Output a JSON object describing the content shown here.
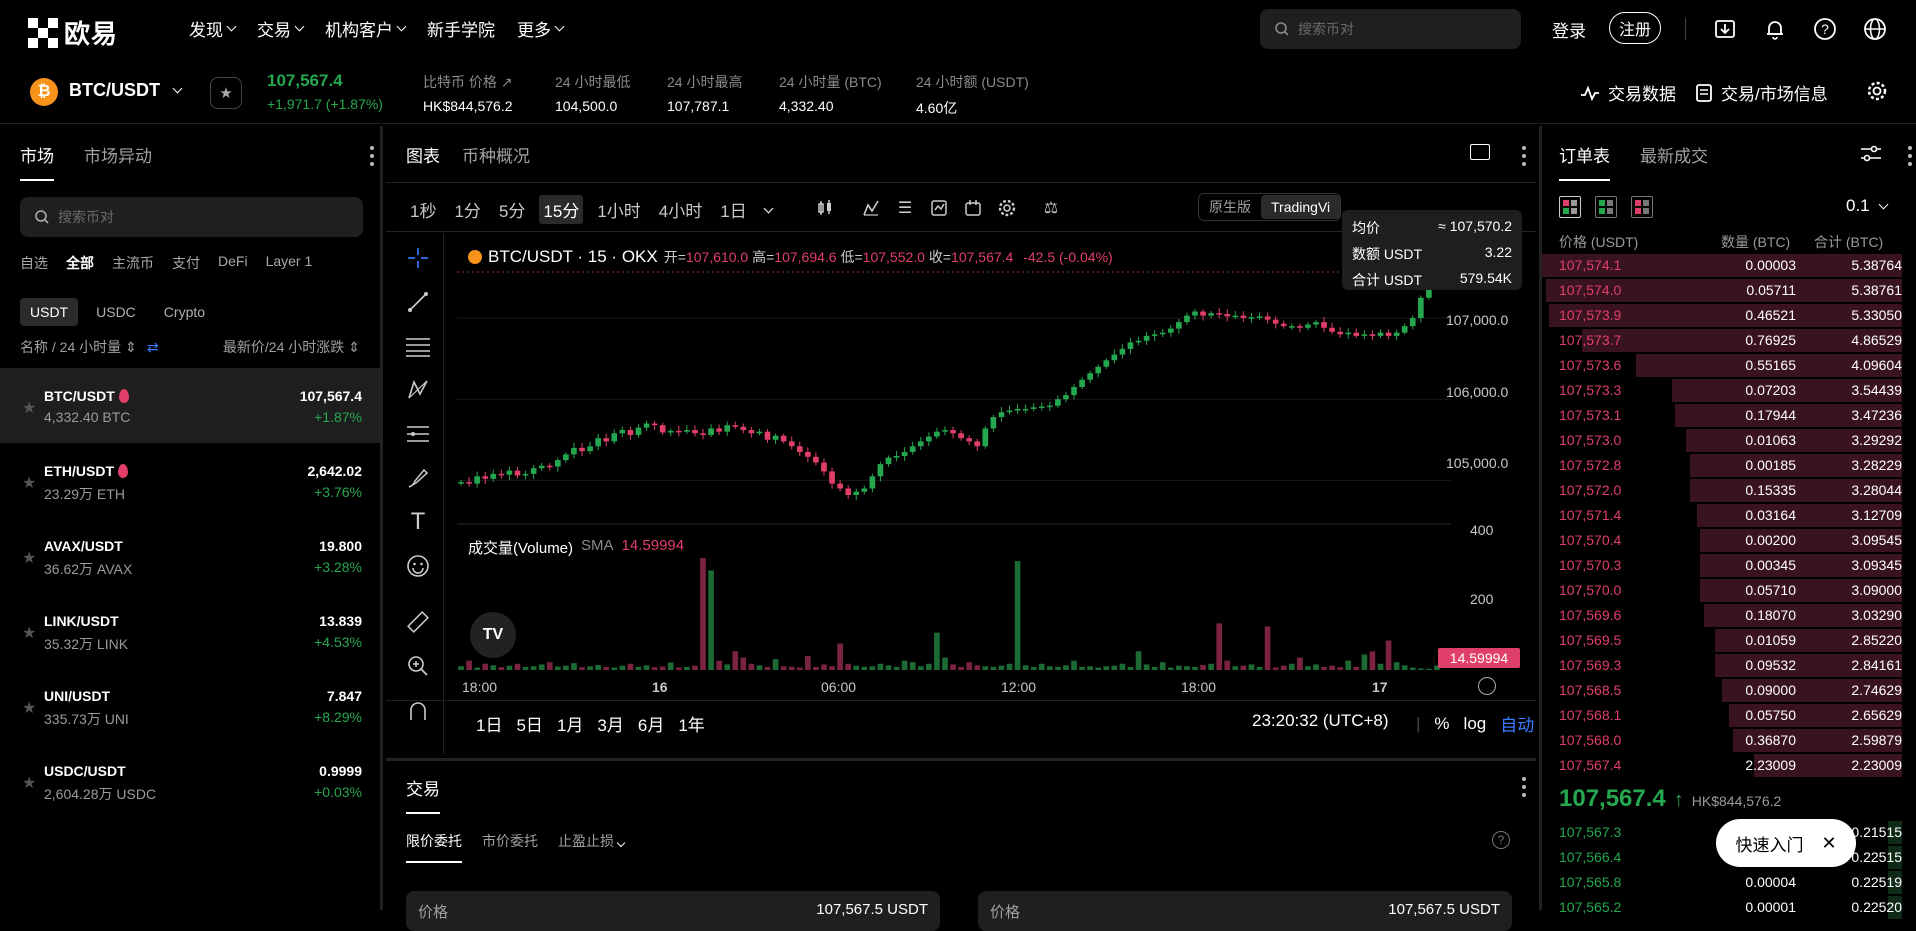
{
  "nav": {
    "logo_text": "欧易",
    "menu": [
      "发现",
      "交易",
      "机构客户",
      "新手学院",
      "更多"
    ],
    "search_placeholder": "搜索币对",
    "login": "登录",
    "register": "注册"
  },
  "ticker": {
    "pair": "BTC/USDT",
    "coin_symbol": "₿",
    "last_price": "107,567.4",
    "change": "+1,971.7 (+1.87%)",
    "stats": [
      {
        "label": "比特币 价格",
        "value": "HK$844,576.2"
      },
      {
        "label": "24 小时最低",
        "value": "104,500.0"
      },
      {
        "label": "24 小时最高",
        "value": "107,787.1"
      },
      {
        "label": "24 小时量 (BTC)",
        "value": "4,332.40"
      },
      {
        "label": "24 小时额 (USDT)",
        "value": "4.60亿"
      }
    ],
    "trade_data": "交易数据",
    "market_info": "交易/市场信息"
  },
  "market": {
    "tabs": [
      "市场",
      "市场异动"
    ],
    "search_placeholder": "搜索币对",
    "categories": [
      "自选",
      "全部",
      "主流币",
      "支付",
      "DeFi",
      "Layer 1"
    ],
    "quote_tabs": [
      "USDT",
      "USDC",
      "Crypto"
    ],
    "col_left": "名称 / 24 小时量",
    "col_right": "最新价/24 小时涨跌",
    "rows": [
      {
        "name": "BTC/USDT",
        "vol": "4,332.40 BTC",
        "price": "107,567.4",
        "pct": "+1.87%"
      },
      {
        "name": "ETH/USDT",
        "vol": "23.29万 ETH",
        "price": "2,642.02",
        "pct": "+3.76%"
      },
      {
        "name": "AVAX/USDT",
        "vol": "36.62万 AVAX",
        "price": "19.800",
        "pct": "+3.28%"
      },
      {
        "name": "LINK/USDT",
        "vol": "35.32万 LINK",
        "price": "13.839",
        "pct": "+4.53%"
      },
      {
        "name": "UNI/USDT",
        "vol": "335.73万 UNI",
        "price": "7.847",
        "pct": "+8.29%"
      },
      {
        "name": "USDC/USDT",
        "vol": "2,604.28万 USDC",
        "price": "0.9999",
        "pct": "+0.03%"
      }
    ]
  },
  "chart": {
    "tabs": [
      "图表",
      "币种概况"
    ],
    "intervals": [
      "1秒",
      "1分",
      "5分",
      "15分",
      "1小时",
      "4小时",
      "1日"
    ],
    "views": [
      "原生版",
      "TradingVi"
    ],
    "legend_title": "BTC/USDT · 15 · OKX",
    "ohlc": {
      "o_label": "开=",
      "o": "107,610.0",
      "h_label": "高=",
      "h": "107,694.6",
      "l_label": "低=",
      "l": "107,552.0",
      "c_label": "收=",
      "c": "107,567.4",
      "chg": "-42.5 (-0.04%)"
    },
    "vol_label": "成交量(Volume)",
    "sma_label": "SMA",
    "sma_value": "14.59994",
    "tooltip": [
      {
        "k": "均价",
        "v": "≈ 107,570.2"
      },
      {
        "k": "数额 USDT",
        "v": "3.22"
      },
      {
        "k": "合计 USDT",
        "v": "579.54K"
      }
    ],
    "ranges": [
      "1日",
      "5日",
      "1月",
      "3月",
      "6月",
      "1年"
    ],
    "clock": "23:20:32 (UTC+8)",
    "scale_pct": "%",
    "scale_log": "log",
    "scale_auto": "自动",
    "price_axis": [
      "107,000.0",
      "106,000.0",
      "105,000.0"
    ],
    "vol_axis": [
      "400",
      "200"
    ],
    "time_axis": [
      "18:00",
      "16",
      "06:00",
      "12:00",
      "18:00",
      "17"
    ]
  },
  "chart_data": {
    "type": "candlestick",
    "title": "BTC/USDT · 15 · OKX",
    "ylim": [
      104450,
      107900
    ],
    "y_ticks": [
      105000,
      106000,
      107000
    ],
    "vol_ylim": [
      0,
      450
    ],
    "vol_ticks": [
      200,
      400
    ],
    "x_ticks": [
      "18:00",
      "16",
      "06:00",
      "12:00",
      "18:00",
      "17"
    ],
    "close_series": [
      104980,
      104960,
      105050,
      105020,
      105080,
      105070,
      105120,
      105060,
      105080,
      105150,
      105180,
      105170,
      105250,
      105320,
      105400,
      105360,
      105420,
      105520,
      105480,
      105580,
      105620,
      105560,
      105650,
      105700,
      105680,
      105590,
      105610,
      105600,
      105620,
      105580,
      105560,
      105640,
      105600,
      105680,
      105660,
      105620,
      105580,
      105600,
      105500,
      105550,
      105480,
      105420,
      105350,
      105290,
      105220,
      105110,
      104960,
      104900,
      104820,
      104860,
      104900,
      105050,
      105200,
      105280,
      105300,
      105350,
      105420,
      105480,
      105540,
      105600,
      105620,
      105580,
      105520,
      105480,
      105420,
      105640,
      105780,
      105840,
      105860,
      105880,
      105880,
      105900,
      105910,
      105920,
      106000,
      106050,
      106150,
      106240,
      106320,
      106400,
      106480,
      106550,
      106620,
      106700,
      106720,
      106780,
      106800,
      106820,
      106870,
      106950,
      107030,
      107080,
      107030,
      107060,
      107050,
      107020,
      107030,
      107000,
      107010,
      107020,
      106980,
      106930,
      106900,
      106900,
      106880,
      106920,
      106950,
      106880,
      106830,
      106800,
      106820,
      106780,
      106800,
      106780,
      106820,
      106780,
      106820,
      106900,
      107000,
      107250,
      107500,
      107567.4
    ],
    "volume": [
      12,
      30,
      8,
      20,
      15,
      9,
      14,
      20,
      10,
      12,
      18,
      25,
      11,
      14,
      22,
      9,
      12,
      16,
      10,
      8,
      14,
      20,
      10,
      15,
      9,
      11,
      24,
      8,
      10,
      14,
      360,
      320,
      30,
      18,
      60,
      40,
      20,
      15,
      10,
      35,
      12,
      10,
      8,
      45,
      10,
      18,
      12,
      85,
      20,
      14,
      10,
      12,
      20,
      15,
      10,
      30,
      25,
      12,
      20,
      120,
      40,
      18,
      10,
      25,
      15,
      12,
      10,
      14,
      20,
      350,
      15,
      10,
      20,
      12,
      10,
      15,
      30,
      10,
      12,
      8,
      12,
      14,
      20,
      10,
      60,
      18,
      10,
      25,
      8,
      14,
      12,
      10,
      16,
      20,
      150,
      30,
      12,
      14,
      18,
      10,
      140,
      8,
      14,
      20,
      40,
      12,
      18,
      10,
      14,
      9,
      30,
      10,
      50,
      60,
      20,
      95,
      25,
      15,
      8,
      5,
      4,
      14.6
    ],
    "last_volume": 14.59994
  },
  "trade": {
    "tab": "交易",
    "order_types": [
      "限价委托",
      "市价委托",
      "止盈止损"
    ],
    "buy_price_label": "价格",
    "buy_price": "107,567.5 USDT",
    "sell_price_label": "价格",
    "sell_price": "107,567.5 USDT"
  },
  "orderbook": {
    "tabs": [
      "订单表",
      "最新成交"
    ],
    "precision": "0.1",
    "headers": [
      "价格 (USDT)",
      "数量 (BTC)",
      "合计 (BTC)"
    ],
    "asks": [
      {
        "p": "107,574.1",
        "a": "0.00003",
        "t": "5.38764",
        "d": 1.0
      },
      {
        "p": "107,574.0",
        "a": "0.05711",
        "t": "5.38761",
        "d": 0.99
      },
      {
        "p": "107,573.9",
        "a": "0.46521",
        "t": "5.33050",
        "d": 0.98
      },
      {
        "p": "107,573.7",
        "a": "0.76925",
        "t": "4.86529",
        "d": 0.89
      },
      {
        "p": "107,573.6",
        "a": "0.55165",
        "t": "4.09604",
        "d": 0.74
      },
      {
        "p": "107,573.3",
        "a": "0.07203",
        "t": "3.54439",
        "d": 0.64
      },
      {
        "p": "107,573.1",
        "a": "0.17944",
        "t": "3.47236",
        "d": 0.63
      },
      {
        "p": "107,573.0",
        "a": "0.01063",
        "t": "3.29292",
        "d": 0.6
      },
      {
        "p": "107,572.8",
        "a": "0.00185",
        "t": "3.28229",
        "d": 0.59
      },
      {
        "p": "107,572.0",
        "a": "0.15335",
        "t": "3.28044",
        "d": 0.59
      },
      {
        "p": "107,571.4",
        "a": "0.03164",
        "t": "3.12709",
        "d": 0.57
      },
      {
        "p": "107,570.4",
        "a": "0.00200",
        "t": "3.09545",
        "d": 0.56
      },
      {
        "p": "107,570.3",
        "a": "0.00345",
        "t": "3.09345",
        "d": 0.56
      },
      {
        "p": "107,570.0",
        "a": "0.05710",
        "t": "3.09000",
        "d": 0.56
      },
      {
        "p": "107,569.6",
        "a": "0.18070",
        "t": "3.03290",
        "d": 0.55
      },
      {
        "p": "107,569.5",
        "a": "0.01059",
        "t": "2.85220",
        "d": 0.52
      },
      {
        "p": "107,569.3",
        "a": "0.09532",
        "t": "2.84161",
        "d": 0.52
      },
      {
        "p": "107,568.5",
        "a": "0.09000",
        "t": "2.74629",
        "d": 0.5
      },
      {
        "p": "107,568.1",
        "a": "0.05750",
        "t": "2.65629",
        "d": 0.48
      },
      {
        "p": "107,568.0",
        "a": "0.36870",
        "t": "2.59879",
        "d": 0.47
      },
      {
        "p": "107,567.4",
        "a": "2.23009",
        "t": "2.23009",
        "d": 0.41
      }
    ],
    "mid_price": "107,567.4",
    "mid_hk": "HK$844,576.2",
    "bids": [
      {
        "p": "107,567.3",
        "a": "",
        "t": "0.21515",
        "d": 0.04
      },
      {
        "p": "107,566.4",
        "a": "",
        "t": "0.22515",
        "d": 0.04
      },
      {
        "p": "107,565.8",
        "a": "0.00004",
        "t": "0.22519",
        "d": 0.04
      },
      {
        "p": "107,565.2",
        "a": "0.00001",
        "t": "0.22520",
        "d": 0.04
      }
    ]
  },
  "quickstart": {
    "label": "快速入门"
  },
  "colors": {
    "up": "#25a750",
    "down": "#e03f6a",
    "accent": "#3a7bff"
  }
}
